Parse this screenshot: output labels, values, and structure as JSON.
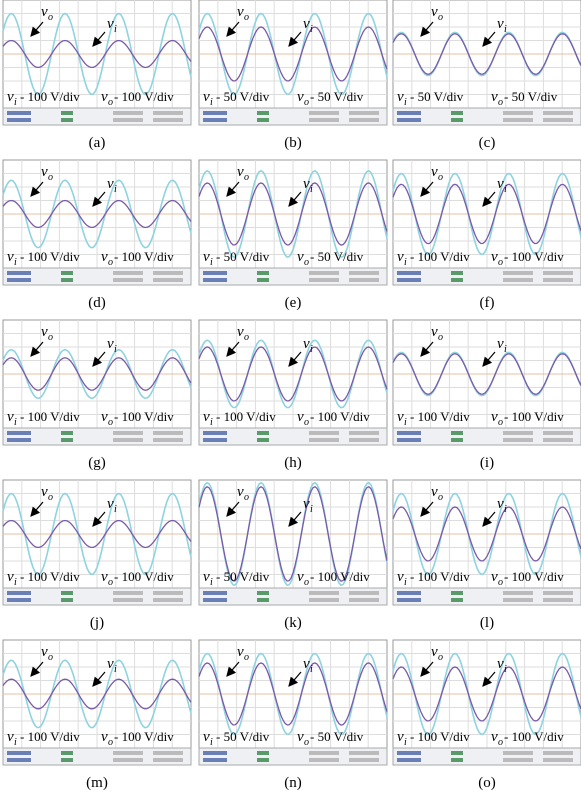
{
  "panels": [
    {
      "label": "(a)",
      "vi": {
        "symbol": "v",
        "subscript": "i",
        "scale": "- 100 V/div",
        "amplitude": 1
      },
      "vo": {
        "symbol": "v",
        "subscript": "o",
        "scale": "- 100 V/div",
        "amplitude": 3
      }
    },
    {
      "label": "(b)",
      "vi": {
        "symbol": "v",
        "subscript": "i",
        "scale": "- 50 V/div",
        "amplitude": 2
      },
      "vo": {
        "symbol": "v",
        "subscript": "o",
        "scale": "- 50 V/div",
        "amplitude": 3
      }
    },
    {
      "label": "(c)",
      "vi": {
        "symbol": "v",
        "subscript": "i",
        "scale": "- 50 V/div",
        "amplitude": 1.5
      },
      "vo": {
        "symbol": "v",
        "subscript": "o",
        "scale": "- 50 V/div",
        "amplitude": 1.6
      }
    },
    {
      "label": "(d)",
      "vi": {
        "symbol": "v",
        "subscript": "i",
        "scale": "- 100 V/div",
        "amplitude": 1
      },
      "vo": {
        "symbol": "v",
        "subscript": "o",
        "scale": "- 100 V/div",
        "amplitude": 2.5
      }
    },
    {
      "label": "(e)",
      "vi": {
        "symbol": "v",
        "subscript": "i",
        "scale": "- 50 V/div",
        "amplitude": 2.3
      },
      "vo": {
        "symbol": "v",
        "subscript": "o",
        "scale": "- 50 V/div",
        "amplitude": 3.2
      }
    },
    {
      "label": "(f)",
      "vi": {
        "symbol": "v",
        "subscript": "i",
        "scale": "- 100 V/div",
        "amplitude": 2.2
      },
      "vo": {
        "symbol": "v",
        "subscript": "o",
        "scale": "- 100 V/div",
        "amplitude": 3
      }
    },
    {
      "label": "(g)",
      "vi": {
        "symbol": "v",
        "subscript": "i",
        "scale": "- 100 V/div",
        "amplitude": 1.2
      },
      "vo": {
        "symbol": "v",
        "subscript": "o",
        "scale": "- 100 V/div",
        "amplitude": 1.8
      }
    },
    {
      "label": "(h)",
      "vi": {
        "symbol": "v",
        "subscript": "i",
        "scale": "- 100 V/div",
        "amplitude": 2
      },
      "vo": {
        "symbol": "v",
        "subscript": "o",
        "scale": "- 100 V/div",
        "amplitude": 2.5
      }
    },
    {
      "label": "(i)",
      "vi": {
        "symbol": "v",
        "subscript": "i",
        "scale": "- 100 V/div",
        "amplitude": 1.5
      },
      "vo": {
        "symbol": "v",
        "subscript": "o",
        "scale": "- 100 V/div",
        "amplitude": 1.6
      }
    },
    {
      "label": "(j)",
      "vi": {
        "symbol": "v",
        "subscript": "i",
        "scale": "- 100 V/div",
        "amplitude": 1
      },
      "vo": {
        "symbol": "v",
        "subscript": "o",
        "scale": "- 100 V/div",
        "amplitude": 3
      }
    },
    {
      "label": "(k)",
      "vi": {
        "symbol": "v",
        "subscript": "i",
        "scale": "- 50 V/div",
        "amplitude": 3.5
      },
      "vo": {
        "symbol": "v",
        "subscript": "o",
        "scale": "- 100 V/div",
        "amplitude": 3.8
      }
    },
    {
      "label": "(l)",
      "vi": {
        "symbol": "v",
        "subscript": "i",
        "scale": "- 100 V/div",
        "amplitude": 2
      },
      "vo": {
        "symbol": "v",
        "subscript": "o",
        "scale": "- 100 V/div",
        "amplitude": 3
      }
    },
    {
      "label": "(m)",
      "vi": {
        "symbol": "v",
        "subscript": "i",
        "scale": "- 100 V/div",
        "amplitude": 1.1
      },
      "vo": {
        "symbol": "v",
        "subscript": "o",
        "scale": "- 100 V/div",
        "amplitude": 2.5
      }
    },
    {
      "label": "(n)",
      "vi": {
        "symbol": "v",
        "subscript": "i",
        "scale": "- 50 V/div",
        "amplitude": 2.3
      },
      "vo": {
        "symbol": "v",
        "subscript": "o",
        "scale": "- 50 V/div",
        "amplitude": 3
      }
    },
    {
      "label": "(o)",
      "vi": {
        "symbol": "v",
        "subscript": "i",
        "scale": "- 100 V/div",
        "amplitude": 2
      },
      "vo": {
        "symbol": "v",
        "subscript": "o",
        "scale": "- 100 V/div",
        "amplitude": 3
      }
    }
  ]
}
